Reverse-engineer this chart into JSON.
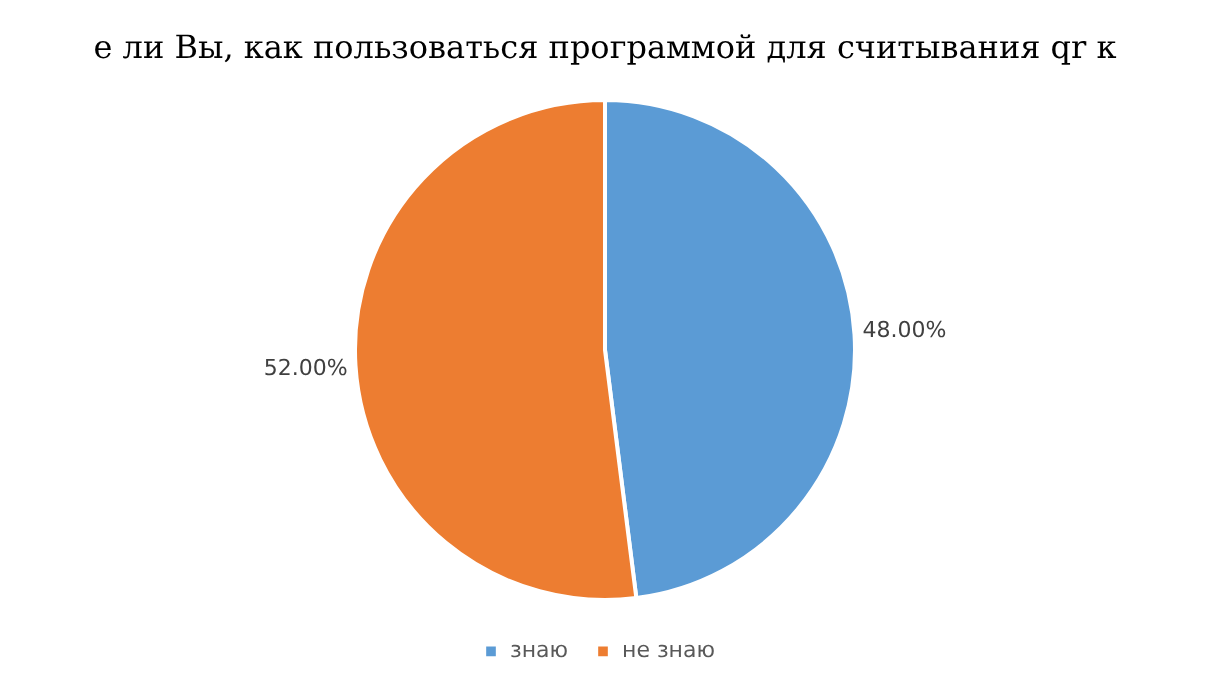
{
  "chart_data": {
    "type": "pie",
    "title": "е ли Вы, как пользоваться программой для считывания  qr к",
    "categories": [
      "знаю",
      "не знаю"
    ],
    "values": [
      48,
      52
    ],
    "colors": [
      "#5b9bd5",
      "#ed7d31"
    ],
    "value_labels": [
      "48.00%",
      "52.00%"
    ],
    "legend": "bottom"
  }
}
